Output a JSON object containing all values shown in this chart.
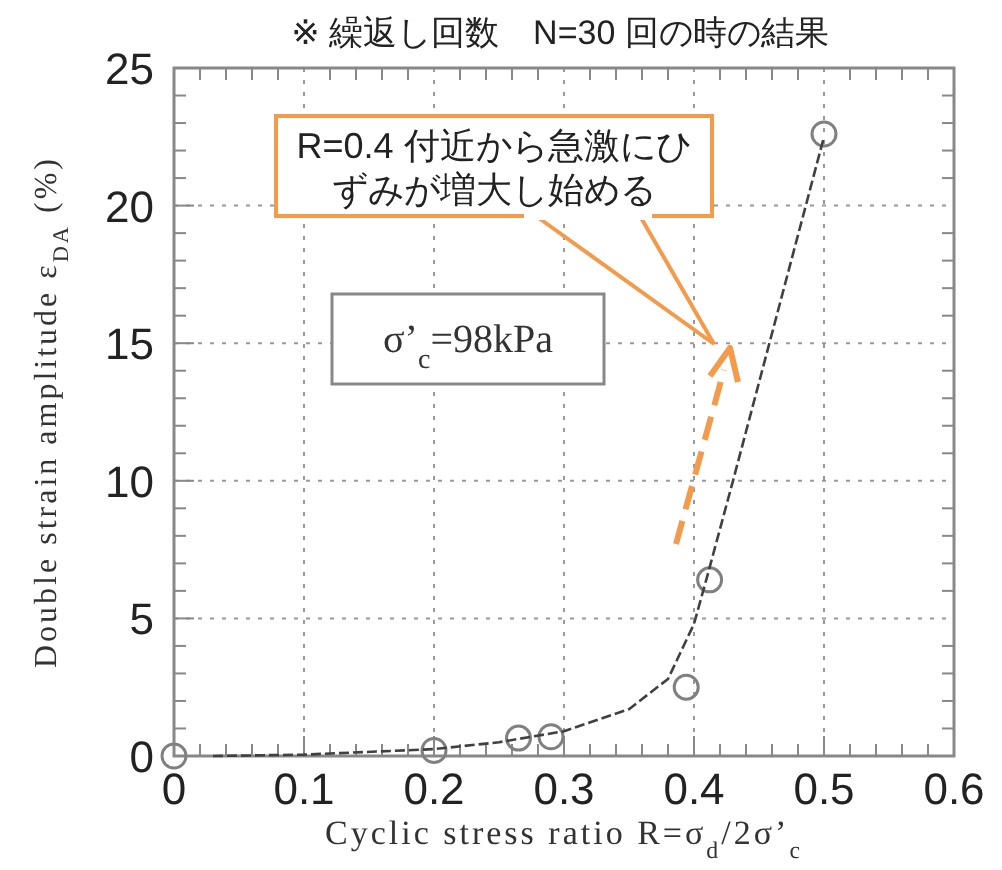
{
  "chart_data": {
    "type": "scatter",
    "title": "※ 繰返し回数　N=30 回の時の結果",
    "xlabel": "Cyclic stress ratio R=σ$_{d}$/2σ’$_{c}$",
    "ylabel": "Double strain amplitude ε$_{DA}$ (%)",
    "xlim": [
      0,
      0.6
    ],
    "xticks": [
      0,
      0.1,
      0.2,
      0.3,
      0.4,
      0.5,
      0.6
    ],
    "ylim": [
      0,
      25
    ],
    "yticks": [
      0,
      5,
      10,
      15,
      20,
      25
    ],
    "grid": true,
    "series": [
      {
        "marker": "circle",
        "color": "#808080",
        "x": [
          0,
          0.2,
          0.265,
          0.29,
          0.394,
          0.412,
          0.5
        ],
        "values": [
          0,
          0.2,
          0.65,
          0.7,
          2.5,
          6.4,
          22.6
        ]
      },
      {
        "type": "line",
        "line_style": "dashed",
        "color": "#404040",
        "x": [
          0.03,
          0.1,
          0.2,
          0.25,
          0.3,
          0.35,
          0.38,
          0.4,
          0.41,
          0.43,
          0.458,
          0.5
        ],
        "values": [
          0,
          0.05,
          0.25,
          0.5,
          0.9,
          1.7,
          2.8,
          4.8,
          6.5,
          10,
          15,
          22.5
        ]
      }
    ],
    "annotations": [
      "R=0.4 付近から急激にひずみが増大し始める",
      "σ’$_{c}$=98kPa"
    ]
  }
}
